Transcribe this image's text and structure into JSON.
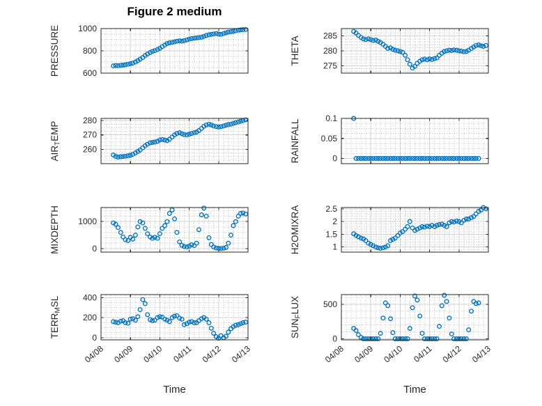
{
  "figure": {
    "title": "Figure 2 medium",
    "xlabel": "Time"
  },
  "colors": {
    "marker": "#0072BD",
    "axes_box": "#262626",
    "tick_text": "#262626",
    "grid_major": "#d2d2d2",
    "grid_minor": "#a8a8a8",
    "background": "#ffffff"
  },
  "chart_data": {
    "type": "scatter",
    "marker": "open-circle",
    "grid": "major solid + minor dotted",
    "legend": "none",
    "title": "Figure 2 medium",
    "xlabel": "Time",
    "x_unit": "days since 04/08 00:00",
    "xlim": [
      0,
      5
    ],
    "xticks": [
      0,
      1,
      2,
      3,
      4,
      5
    ],
    "xticklabels": [
      "04/08",
      "04/09",
      "04/10",
      "04/11",
      "04/12",
      "04/13"
    ],
    "x": [
      0.42,
      0.5,
      0.58,
      0.67,
      0.75,
      0.83,
      0.92,
      1.0,
      1.08,
      1.17,
      1.25,
      1.33,
      1.42,
      1.5,
      1.58,
      1.67,
      1.75,
      1.83,
      1.92,
      2.0,
      2.08,
      2.17,
      2.25,
      2.33,
      2.42,
      2.5,
      2.58,
      2.67,
      2.75,
      2.83,
      2.92,
      3.0,
      3.08,
      3.17,
      3.25,
      3.33,
      3.42,
      3.5,
      3.58,
      3.67,
      3.75,
      3.83,
      3.92,
      4.0,
      4.08,
      4.17,
      4.25,
      4.33,
      4.42,
      4.5,
      4.58,
      4.67,
      4.75,
      4.83,
      4.92
    ],
    "subplots": [
      {
        "name": "PRESSURE",
        "ylabel_parts": [
          {
            "text": "PRESSURE",
            "sub": false
          }
        ],
        "ylim": [
          600,
          1000
        ],
        "yticks": [
          600,
          800,
          1000
        ],
        "yticklabels": [
          "600",
          "800",
          "1000"
        ],
        "yminor": 50,
        "values": [
          665,
          668,
          666,
          670,
          672,
          675,
          680,
          685,
          690,
          700,
          712,
          725,
          740,
          758,
          772,
          785,
          795,
          802,
          812,
          822,
          838,
          852,
          865,
          872,
          876,
          880,
          886,
          890,
          887,
          892,
          898,
          905,
          910,
          914,
          916,
          918,
          922,
          930,
          938,
          944,
          948,
          952,
          955,
          950,
          948,
          955,
          962,
          968,
          972,
          975,
          980,
          985,
          988,
          990,
          992
        ]
      },
      {
        "name": "THETA",
        "ylabel_parts": [
          {
            "text": "THETA",
            "sub": false
          }
        ],
        "ylim": [
          272.5,
          287.5
        ],
        "yticks": [
          275,
          280,
          285
        ],
        "yticklabels": [
          "275",
          "280",
          "285"
        ],
        "yminor": 1,
        "values": [
          286.5,
          286.0,
          285.2,
          284.5,
          284.0,
          283.8,
          284.0,
          283.8,
          283.5,
          283.6,
          283.2,
          282.8,
          282.2,
          281.5,
          280.8,
          281.0,
          280.5,
          280.2,
          280.0,
          279.8,
          279.5,
          278.5,
          277.0,
          275.5,
          274.2,
          274.8,
          275.8,
          276.5,
          277.0,
          277.2,
          277.0,
          277.3,
          277.1,
          277.4,
          277.6,
          278.5,
          279.2,
          279.8,
          280.0,
          280.2,
          280.1,
          280.3,
          280.2,
          280.0,
          279.9,
          279.7,
          279.8,
          280.2,
          280.8,
          281.3,
          281.8,
          282.0,
          281.7,
          281.5,
          281.8
        ]
      },
      {
        "name": "AIR_TEMP",
        "ylabel_parts": [
          {
            "text": "AIR",
            "sub": false
          },
          {
            "text": "T",
            "sub": true
          },
          {
            "text": "EMP",
            "sub": false
          }
        ],
        "ylim": [
          250,
          281.5
        ],
        "yticks": [
          260,
          270,
          280
        ],
        "yticklabels": [
          "260",
          "270",
          "280"
        ],
        "yminor": 2.5,
        "values": [
          256.0,
          255.0,
          254.6,
          254.8,
          255.0,
          255.2,
          255.5,
          255.8,
          256.5,
          257.5,
          258.5,
          259.5,
          261.0,
          262.5,
          263.5,
          264.5,
          264.8,
          265.0,
          265.5,
          266.5,
          266.8,
          266.5,
          266.0,
          267.0,
          268.5,
          270.0,
          271.0,
          271.5,
          270.8,
          270.2,
          270.0,
          270.5,
          271.0,
          271.5,
          272.0,
          273.0,
          274.5,
          276.0,
          277.0,
          277.5,
          277.0,
          276.2,
          275.8,
          275.5,
          275.8,
          276.2,
          276.8,
          277.2,
          277.5,
          278.0,
          278.5,
          279.0,
          279.5,
          280.0,
          280.5
        ]
      },
      {
        "name": "RAINFALL",
        "ylabel_parts": [
          {
            "text": "RAINFALL",
            "sub": false
          }
        ],
        "ylim": [
          -0.013,
          0.1
        ],
        "yticks": [
          0,
          0.05,
          0.1
        ],
        "yticklabels": [
          "0",
          "0.05",
          "0.1"
        ],
        "yminor": 0.0125,
        "values": [
          0.1,
          0,
          0,
          0,
          0,
          0,
          0,
          0,
          0,
          0,
          0,
          0,
          0,
          0,
          0,
          0,
          0,
          0,
          0,
          0,
          0,
          0,
          0,
          0,
          0,
          0,
          0,
          0,
          0,
          0,
          0,
          0,
          0,
          0,
          0,
          0,
          0,
          0,
          0,
          0,
          0,
          0,
          0,
          0,
          0,
          0,
          0,
          0,
          0,
          0,
          0,
          0,
          null,
          null,
          null
        ]
      },
      {
        "name": "MIXDEPTH",
        "ylabel_parts": [
          {
            "text": "MIXDEPTH",
            "sub": false
          }
        ],
        "ylim": [
          -130,
          1520
        ],
        "yticks": [
          0,
          1000
        ],
        "yticklabels": [
          "0",
          "1000"
        ],
        "yminor": 200,
        "values": [
          950,
          900,
          780,
          600,
          430,
          330,
          300,
          420,
          350,
          500,
          800,
          1000,
          950,
          750,
          550,
          430,
          380,
          420,
          380,
          550,
          750,
          850,
          1000,
          1300,
          1430,
          1100,
          600,
          250,
          120,
          80,
          60,
          90,
          140,
          110,
          200,
          700,
          1250,
          1500,
          1200,
          400,
          150,
          60,
          20,
          10,
          5,
          15,
          40,
          200,
          500,
          850,
          1000,
          1200,
          1300,
          1320,
          1280
        ]
      },
      {
        "name": "H2OMIXRA",
        "ylabel_parts": [
          {
            "text": "H2OMIXRA",
            "sub": false
          }
        ],
        "ylim": [
          0.8,
          2.55
        ],
        "yticks": [
          1,
          1.5,
          2,
          2.5
        ],
        "yticklabels": [
          "1",
          "1.5",
          "2",
          "2.5"
        ],
        "yminor": 0.1,
        "values": [
          1.52,
          1.45,
          1.4,
          1.35,
          1.32,
          1.25,
          1.15,
          1.1,
          1.05,
          1.0,
          0.97,
          0.95,
          0.97,
          1.0,
          1.05,
          1.25,
          1.3,
          1.35,
          1.45,
          1.55,
          1.6,
          1.7,
          1.8,
          2.0,
          1.75,
          1.65,
          1.7,
          1.75,
          1.8,
          1.78,
          1.82,
          1.8,
          1.85,
          1.8,
          1.85,
          1.88,
          1.9,
          1.85,
          1.8,
          1.95,
          2.0,
          1.98,
          2.02,
          2.0,
          1.95,
          2.05,
          2.1,
          2.1,
          2.15,
          2.2,
          2.3,
          2.4,
          2.45,
          2.55,
          2.5
        ]
      },
      {
        "name": "TERR_MSL",
        "ylabel_parts": [
          {
            "text": "TERR",
            "sub": false
          },
          {
            "text": "M",
            "sub": true
          },
          {
            "text": "SL",
            "sub": false
          }
        ],
        "ylim": [
          -21,
          430
        ],
        "yticks": [
          0,
          200,
          400
        ],
        "yticklabels": [
          "0",
          "200",
          "400"
        ],
        "yminor": 50,
        "values": [
          160,
          155,
          150,
          165,
          170,
          150,
          145,
          185,
          190,
          175,
          210,
          280,
          380,
          340,
          230,
          180,
          170,
          175,
          200,
          210,
          205,
          185,
          175,
          160,
          200,
          215,
          220,
          195,
          185,
          130,
          140,
          155,
          160,
          150,
          150,
          170,
          190,
          200,
          185,
          150,
          95,
          45,
          10,
          -5,
          20,
          0,
          15,
          55,
          90,
          110,
          125,
          130,
          140,
          150,
          155
        ]
      },
      {
        "name": "SUN_FLUX",
        "ylabel_parts": [
          {
            "text": "SUN",
            "sub": false
          },
          {
            "text": "F",
            "sub": true
          },
          {
            "text": "LUX",
            "sub": false
          }
        ],
        "ylim": [
          -15,
          640
        ],
        "yticks": [
          0,
          500
        ],
        "yticklabels": [
          "0",
          "500"
        ],
        "yminor": 100,
        "values": [
          150,
          120,
          60,
          20,
          0,
          0,
          0,
          0,
          0,
          0,
          0,
          80,
          300,
          520,
          480,
          290,
          90,
          0,
          0,
          0,
          0,
          0,
          0,
          150,
          450,
          620,
          560,
          330,
          80,
          0,
          0,
          0,
          0,
          0,
          0,
          180,
          480,
          630,
          540,
          300,
          70,
          0,
          0,
          0,
          0,
          0,
          0,
          130,
          400,
          540,
          510,
          520,
          null,
          null,
          null
        ]
      }
    ]
  }
}
